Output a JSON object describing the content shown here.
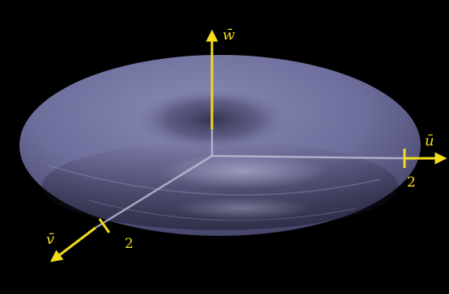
{
  "figure": {
    "background_color": "#000000",
    "surface_color": "#6f6f9e",
    "axis_color": "#f2dc1c",
    "inner_axis_color": "#c7c7dc",
    "axes": {
      "u": {
        "label": "ū",
        "tick_label": "2"
      },
      "v": {
        "label": "v̄",
        "tick_label": "2"
      },
      "w": {
        "label": "w̄"
      }
    }
  }
}
